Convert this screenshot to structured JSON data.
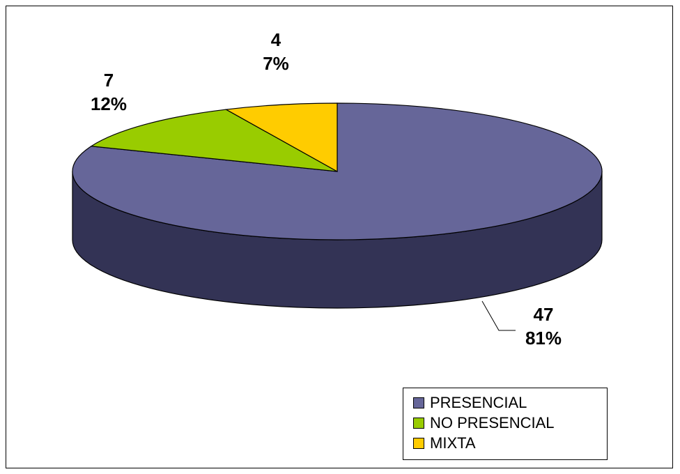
{
  "chart_data": {
    "type": "pie",
    "style": "3d",
    "categories": [
      "PRESENCIAL",
      "NO PRESENCIAL",
      "MIXTA"
    ],
    "values": [
      47,
      7,
      4
    ],
    "percentages": [
      "81%",
      "12%",
      "7%"
    ],
    "value_labels": [
      "47",
      "7",
      "4"
    ],
    "colors": [
      "#666699",
      "#99CC00",
      "#FFCC00"
    ],
    "dark_colors": [
      "#333355",
      "#5c7a00",
      "#99790a"
    ],
    "legend_position": "bottom-right"
  },
  "legend": {
    "items": [
      {
        "label": "PRESENCIAL",
        "color": "#666699"
      },
      {
        "label": "NO PRESENCIAL",
        "color": "#99CC00"
      },
      {
        "label": "MIXTA",
        "color": "#FFCC00"
      }
    ]
  }
}
